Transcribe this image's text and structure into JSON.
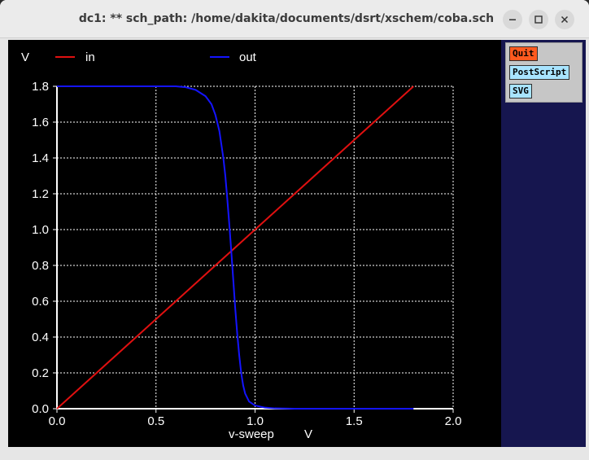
{
  "window": {
    "title": "dc1: ** sch_path: /home/dakita/documents/dsrt/xschem/coba.sch"
  },
  "side_panel": {
    "quit_label": "Quit",
    "postscript_label": "PostScript",
    "svg_label": "SVG",
    "quit_color": "#ff5a1f",
    "postscript_color": "#a8e4ff",
    "svg_color": "#a8e4ff"
  },
  "chart_data": {
    "type": "line",
    "title": "",
    "xlabel": "v-sweep",
    "xunit": "V",
    "ylabel": "V",
    "xlim": [
      0,
      2.0
    ],
    "ylim": [
      0,
      1.8
    ],
    "xticks": [
      "0.0",
      "0.5",
      "1.0",
      "1.5",
      "2.0"
    ],
    "yticks": [
      "0.0",
      "0.2",
      "0.4",
      "0.6",
      "0.8",
      "1.0",
      "1.2",
      "1.4",
      "1.6",
      "1.8"
    ],
    "grid": true,
    "legend": "top",
    "series": [
      {
        "name": "in",
        "color": "#e01010",
        "x": [
          0.0,
          1.8
        ],
        "y": [
          0.0,
          1.8
        ]
      },
      {
        "name": "out",
        "color": "#1414ff",
        "x": [
          0.0,
          0.6,
          0.65,
          0.7,
          0.75,
          0.78,
          0.8,
          0.82,
          0.84,
          0.85,
          0.86,
          0.87,
          0.88,
          0.89,
          0.9,
          0.91,
          0.92,
          0.93,
          0.94,
          0.95,
          0.97,
          1.0,
          1.05,
          1.1,
          1.2,
          1.3,
          1.8
        ],
        "y": [
          1.8,
          1.8,
          1.795,
          1.78,
          1.745,
          1.7,
          1.64,
          1.55,
          1.4,
          1.3,
          1.17,
          1.03,
          0.88,
          0.72,
          0.56,
          0.42,
          0.3,
          0.2,
          0.13,
          0.085,
          0.04,
          0.018,
          0.006,
          0.002,
          0.0,
          0.0,
          0.0
        ]
      }
    ]
  }
}
